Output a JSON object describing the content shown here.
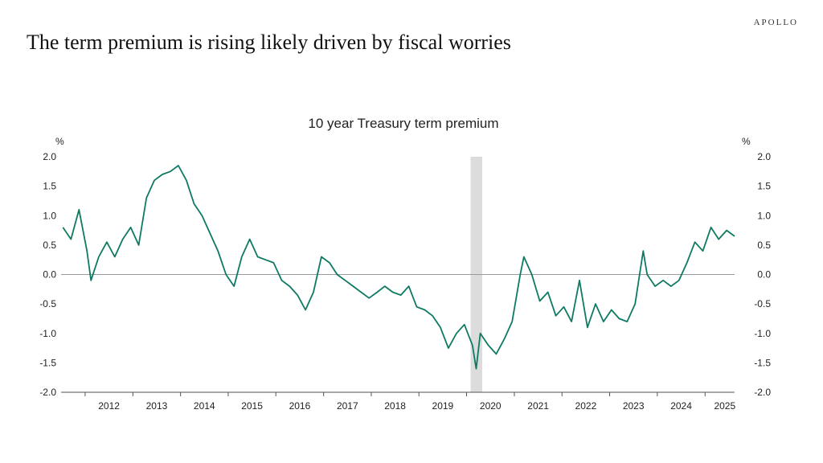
{
  "brand": "APOLLO",
  "headline": "The term premium is rising likely driven by fiscal worries",
  "chart_data": {
    "type": "line",
    "title": "10 year Treasury term premium",
    "xlabel": "",
    "ylabel_left": "%",
    "ylabel_right": "%",
    "xlim": [
      "2011-07-01",
      "2025-08-15"
    ],
    "ylim": [
      -2.0,
      2.0
    ],
    "yticks": [
      2.0,
      1.5,
      1.0,
      0.5,
      0.0,
      -0.5,
      -1.0,
      -1.5,
      -2.0
    ],
    "ytick_labels": [
      "2.0",
      "1.5",
      "1.0",
      "0.5",
      "0.0",
      "-0.5",
      "-1.0",
      "-1.5",
      "-2.0"
    ],
    "xtick_labels": [
      "2012",
      "2013",
      "2014",
      "2015",
      "2016",
      "2017",
      "2018",
      "2019",
      "2020",
      "2021",
      "2022",
      "2023",
      "2024",
      "2025"
    ],
    "zero_line": true,
    "grid": false,
    "colors": {
      "line": "#0f7a63",
      "shade": "#dcdcdc",
      "zero": "#9a9a9a"
    },
    "shaded_periods": [
      {
        "start": "2020-02-01",
        "end": "2020-04-30"
      }
    ],
    "series": [
      {
        "x": [
          "2011-07",
          "2011-09",
          "2011-11",
          "2012-01",
          "2012-02",
          "2012-04",
          "2012-06",
          "2012-08",
          "2012-10",
          "2012-12",
          "2013-02",
          "2013-04",
          "2013-06",
          "2013-08",
          "2013-10",
          "2013-12",
          "2014-02",
          "2014-04",
          "2014-06",
          "2014-08",
          "2014-10",
          "2014-12",
          "2015-02",
          "2015-04",
          "2015-06",
          "2015-08",
          "2015-10",
          "2015-12",
          "2016-02",
          "2016-04",
          "2016-06",
          "2016-08",
          "2016-10",
          "2016-12",
          "2017-02",
          "2017-04",
          "2017-06",
          "2017-08",
          "2017-10",
          "2017-12",
          "2018-02",
          "2018-04",
          "2018-06",
          "2018-08",
          "2018-10",
          "2018-12",
          "2019-02",
          "2019-04",
          "2019-06",
          "2019-08",
          "2019-10",
          "2019-12",
          "2020-02",
          "2020-03",
          "2020-04",
          "2020-06",
          "2020-08",
          "2020-10",
          "2020-12",
          "2021-02",
          "2021-03",
          "2021-05",
          "2021-07",
          "2021-09",
          "2021-11",
          "2022-01",
          "2022-03",
          "2022-05",
          "2022-07",
          "2022-09",
          "2022-11",
          "2023-01",
          "2023-03",
          "2023-05",
          "2023-07",
          "2023-09",
          "2023-10",
          "2023-12",
          "2024-02",
          "2024-04",
          "2024-06",
          "2024-08",
          "2024-10",
          "2024-12",
          "2025-02",
          "2025-04",
          "2025-06",
          "2025-08"
        ],
        "values": [
          0.8,
          0.6,
          1.1,
          0.4,
          -0.1,
          0.3,
          0.55,
          0.3,
          0.6,
          0.8,
          0.5,
          1.3,
          1.6,
          1.7,
          1.75,
          1.85,
          1.6,
          1.2,
          1.0,
          0.7,
          0.4,
          0.0,
          -0.2,
          0.3,
          0.6,
          0.3,
          0.25,
          0.2,
          -0.1,
          -0.2,
          -0.35,
          -0.6,
          -0.3,
          0.3,
          0.2,
          0.0,
          -0.1,
          -0.2,
          -0.3,
          -0.4,
          -0.3,
          -0.2,
          -0.3,
          -0.35,
          -0.2,
          -0.55,
          -0.6,
          -0.7,
          -0.9,
          -1.25,
          -1.0,
          -0.85,
          -1.2,
          -1.6,
          -1.0,
          -1.2,
          -1.35,
          -1.1,
          -0.8,
          0.0,
          0.3,
          0.0,
          -0.45,
          -0.3,
          -0.7,
          -0.55,
          -0.8,
          -0.1,
          -0.9,
          -0.5,
          -0.8,
          -0.6,
          -0.75,
          -0.8,
          -0.5,
          0.4,
          0.0,
          -0.2,
          -0.1,
          -0.2,
          -0.1,
          0.2,
          0.55,
          0.4,
          0.8,
          0.6,
          0.75,
          0.65
        ]
      }
    ]
  }
}
